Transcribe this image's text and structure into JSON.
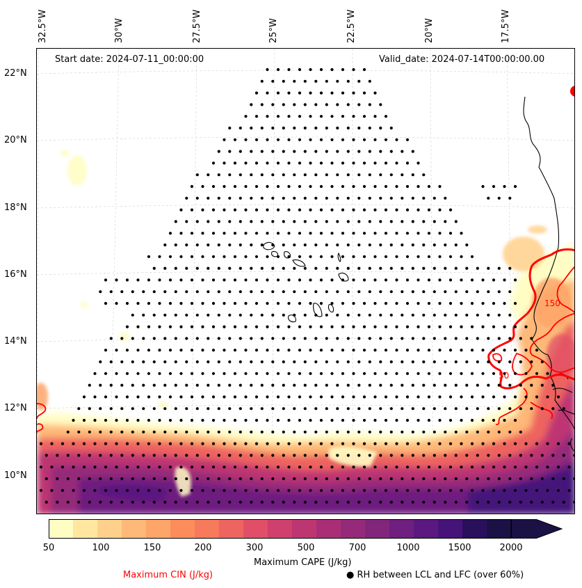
{
  "map": {
    "start_date": "Start date: 2024-07-11_00:00:00",
    "valid_date": "Valid_date: 2024-07-14T00:00:00.00",
    "lon_labels": [
      "32.5°W",
      "30°W",
      "27.5°W",
      "25°W",
      "22.5°W",
      "20°W",
      "17.5°W"
    ],
    "lat_labels": [
      "22°N",
      "20°N",
      "18°N",
      "16°N",
      "14°N",
      "12°N",
      "10°N"
    ],
    "cin_contour_labels": [
      "150",
      "50"
    ]
  },
  "colorbar": {
    "title": "Maximum CAPE (J/kg)",
    "ticks": [
      "50",
      "100",
      "150",
      "200",
      "300",
      "500",
      "700",
      "1000",
      "1500",
      "2000"
    ],
    "colors": [
      "#fffdc4",
      "#ffe7a0",
      "#ffd08b",
      "#feb877",
      "#fea56a",
      "#fd8c5c",
      "#f67a5b",
      "#ee6460",
      "#e04f67",
      "#cf406e",
      "#bd3672",
      "#a92e76",
      "#962a7a",
      "#82267c",
      "#6e1f7f",
      "#5a1880",
      "#45137a",
      "#2a0f5c",
      "#1a1245"
    ],
    "extend_color": "#1a1245"
  },
  "legend": {
    "cin_label": "Maximum CIN (J/kg)",
    "cin_color": "#ff0000",
    "rh_label": "● RH between LCL and LFC (over 60%)"
  }
}
